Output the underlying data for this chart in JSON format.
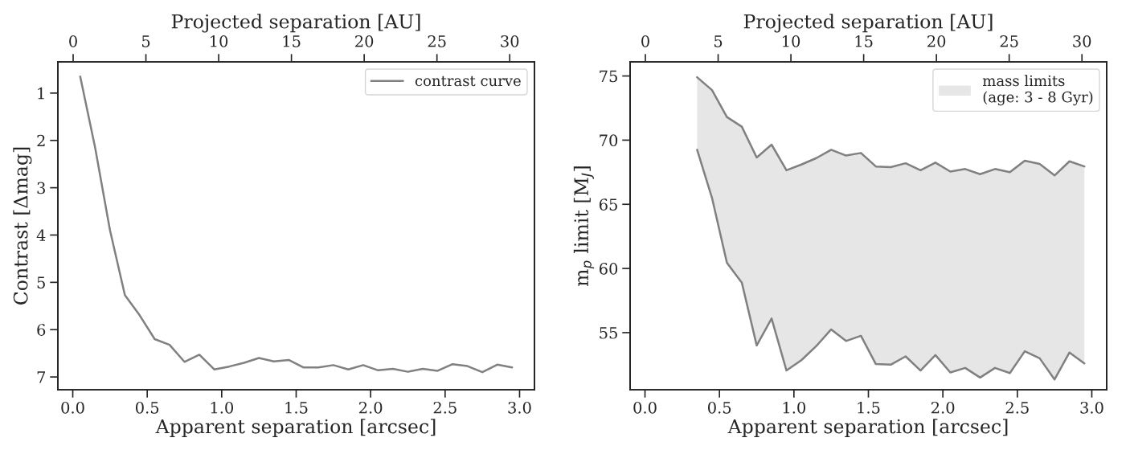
{
  "chart_data": [
    {
      "type": "line",
      "xlabel": "Apparent separation [arcsec]",
      "ylabel": "Contrast [Δmag]",
      "x2label": "Projected separation [AU]",
      "x": [
        0.05,
        0.15,
        0.25,
        0.35,
        0.45,
        0.55,
        0.65,
        0.75,
        0.85,
        0.95,
        1.05,
        1.15,
        1.25,
        1.35,
        1.45,
        1.55,
        1.65,
        1.75,
        1.85,
        1.95,
        2.05,
        2.15,
        2.25,
        2.35,
        2.45,
        2.55,
        2.65,
        2.75,
        2.85,
        2.95
      ],
      "series": [
        {
          "name": "contrast curve",
          "color": "#808080",
          "values": [
            0.65,
            2.15,
            3.9,
            5.27,
            5.7,
            6.2,
            6.32,
            6.68,
            6.53,
            6.84,
            6.78,
            6.7,
            6.6,
            6.67,
            6.64,
            6.8,
            6.8,
            6.75,
            6.84,
            6.75,
            6.86,
            6.83,
            6.89,
            6.83,
            6.87,
            6.73,
            6.77,
            6.9,
            6.74,
            6.8
          ]
        }
      ],
      "xlim": [
        -0.1,
        3.1
      ],
      "xticks": [
        {
          "value": 0,
          "label": "0.0"
        },
        {
          "value": 0.5,
          "label": "0.5"
        },
        {
          "value": 1,
          "label": "1.0"
        },
        {
          "value": 1.5,
          "label": "1.5"
        },
        {
          "value": 2,
          "label": "2.0"
        },
        {
          "value": 2.5,
          "label": "2.5"
        },
        {
          "value": 3,
          "label": "3.0"
        }
      ],
      "x2lim": [
        -1.05,
        31.7
      ],
      "x2ticks": [
        0,
        5,
        10,
        15,
        20,
        25,
        30
      ],
      "ylim": [
        7.27,
        0.34
      ],
      "yticks": [
        1,
        2,
        3,
        4,
        5,
        6,
        7
      ],
      "grid": false,
      "legend": "top right",
      "marker": "none",
      "line_style": "solid"
    },
    {
      "type": "area",
      "xlabel": "Apparent separation [arcsec]",
      "ylabel": "m$_{p}$ limit [M$_{J}$]",
      "x2label": "Projected separation [AU]",
      "x": [
        0.35,
        0.45,
        0.55,
        0.65,
        0.75,
        0.85,
        0.95,
        1.05,
        1.15,
        1.25,
        1.35,
        1.45,
        1.55,
        1.65,
        1.75,
        1.85,
        1.95,
        2.05,
        2.15,
        2.25,
        2.35,
        2.45,
        2.55,
        2.65,
        2.75,
        2.85,
        2.95
      ],
      "series": [
        {
          "type": "line",
          "color": "#808080",
          "values": [
            69.25,
            65.5,
            60.45,
            58.9,
            54.0,
            56.1,
            52.05,
            52.85,
            53.95,
            55.25,
            54.35,
            54.75,
            52.55,
            52.5,
            53.15,
            52.05,
            53.25,
            51.9,
            52.25,
            51.5,
            52.25,
            51.85,
            53.55,
            53.0,
            51.35,
            53.45,
            52.6
          ]
        },
        {
          "type": "line",
          "name": "mass limits\n(age: 3 - 8 Gyr)",
          "color": "#808080",
          "values": [
            74.9,
            73.9,
            71.8,
            71.05,
            68.65,
            69.65,
            67.65,
            68.1,
            68.6,
            69.25,
            68.8,
            69.0,
            67.95,
            67.9,
            68.2,
            67.65,
            68.25,
            67.55,
            67.75,
            67.35,
            67.75,
            67.5,
            68.4,
            68.15,
            67.25,
            68.35,
            67.95
          ],
          "upper": [
            74.9,
            73.9,
            71.8,
            71.05,
            68.65,
            69.65,
            67.65,
            68.1,
            68.6,
            69.25,
            68.8,
            69.0,
            67.95,
            67.9,
            68.2,
            67.65,
            68.25,
            67.55,
            67.75,
            67.35,
            67.75,
            67.5,
            68.4,
            68.15,
            67.25,
            68.35,
            67.95
          ],
          "lower": [
            69.25,
            65.5,
            60.45,
            58.9,
            54.0,
            56.1,
            52.05,
            52.85,
            53.95,
            55.25,
            54.35,
            54.75,
            52.55,
            52.5,
            53.15,
            52.05,
            53.25,
            51.9,
            52.25,
            51.5,
            52.25,
            51.85,
            53.55,
            53.0,
            51.35,
            53.45,
            52.6
          ]
        }
      ],
      "xlim": [
        -0.1,
        3.1
      ],
      "xticks": [
        {
          "value": 0,
          "label": "0.0"
        },
        {
          "value": 0.5,
          "label": "0.5"
        },
        {
          "value": 1,
          "label": "1.0"
        },
        {
          "value": 1.5,
          "label": "1.5"
        },
        {
          "value": 2,
          "label": "2.0"
        },
        {
          "value": 2.5,
          "label": "2.5"
        },
        {
          "value": 3,
          "label": "3.0"
        }
      ],
      "x2lim": [
        -1.05,
        31.7
      ],
      "x2ticks": [
        0,
        5,
        10,
        15,
        20,
        25,
        30
      ],
      "ylim": [
        50.55,
        76.1
      ],
      "yticks": [
        55,
        60,
        65,
        70,
        75
      ],
      "grid": false,
      "legend": "top right",
      "marker": "none",
      "line_style": "solid"
    }
  ]
}
